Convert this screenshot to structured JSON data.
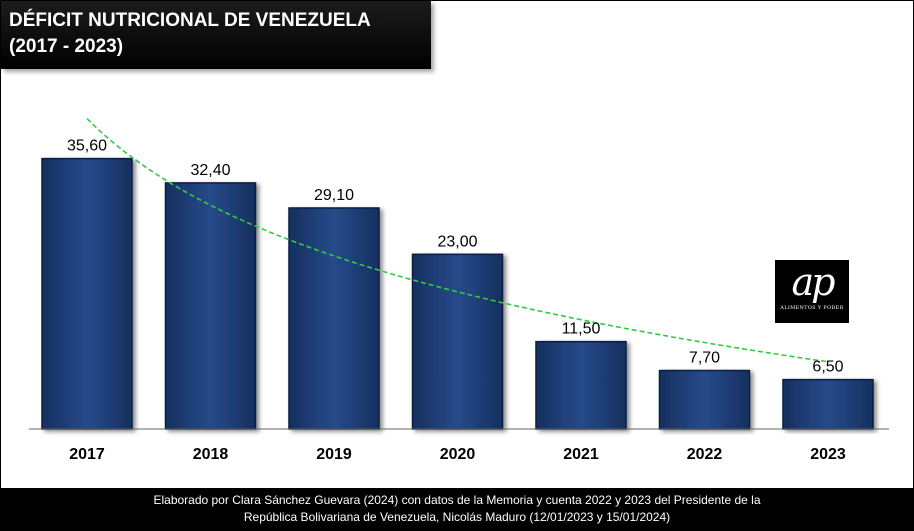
{
  "title": {
    "line1": "DÉFICIT NUTRICIONAL DE VENEZUELA",
    "line2": "(2017 - 2023)"
  },
  "chart_data": {
    "type": "bar",
    "categories": [
      "2017",
      "2018",
      "2019",
      "2020",
      "2021",
      "2022",
      "2023"
    ],
    "values": [
      35.6,
      32.4,
      29.1,
      23.0,
      11.5,
      7.7,
      6.5
    ],
    "value_labels": [
      "35,60",
      "32,40",
      "29,10",
      "23,00",
      "11,50",
      "7,70",
      "6,50"
    ],
    "ylim": [
      0,
      44.5
    ],
    "trendline": true,
    "grid": false,
    "colors": {
      "bar_fill": "#1f3b72",
      "bar_stroke": "#0d1f45",
      "trendline": "#2ecc40",
      "axis": "#555555"
    }
  },
  "logo": {
    "mark": "ap",
    "tagline": "ALIMENTOS Y PODER"
  },
  "footer": {
    "line1": "Elaborado por Clara Sánchez Guevara (2024) con datos de la Memoria y cuenta 2022 y 2023 del Presidente de la",
    "line2": "República Bolivariana de Venezuela, Nicolás Maduro (12/01/2023 y 15/01/2024)"
  }
}
